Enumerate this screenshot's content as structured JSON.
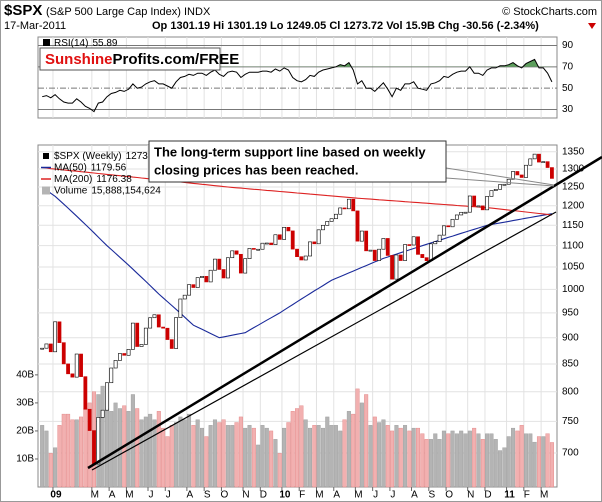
{
  "header": {
    "symbol": "$SPX",
    "name": "(S&P 500 Large Cap Index) INDX",
    "source": "© StockCharts.com",
    "date": "17-Mar-2011",
    "stats": "Op 1301.19 Hi 1301.19 Lo 1249.05 Cl 1273.72 Vol 15.9B Chg -30.56 (-2.34%)"
  },
  "chart_data": [
    {
      "type": "line",
      "logo": [
        "Sunshine",
        "Profits.com/FREE"
      ],
      "ylim": [
        22,
        98
      ],
      "yticks": [
        30,
        50,
        70,
        90
      ],
      "overbought_color": "#5c9e5c",
      "series": [
        {
          "name": "RSI(14)",
          "color": "#000000",
          "values": [
            42,
            43,
            41,
            44,
            40,
            37,
            36,
            36,
            40,
            37,
            33,
            31,
            28,
            36,
            37,
            42,
            45,
            46,
            48,
            47,
            49,
            54,
            50,
            51,
            54,
            56,
            57,
            54,
            54,
            52,
            50,
            56,
            60,
            61,
            63,
            62,
            64,
            64,
            62,
            65,
            67,
            63,
            61,
            65,
            66,
            65,
            60,
            63,
            65,
            65,
            65,
            66,
            66,
            65,
            68,
            66,
            69,
            67,
            60,
            57,
            56,
            58,
            62,
            61,
            65,
            67,
            68,
            69,
            70,
            72,
            71,
            74,
            67,
            54,
            57,
            50,
            50,
            47,
            51,
            55,
            49,
            42,
            50,
            48,
            54,
            54,
            56,
            50,
            49,
            48,
            54,
            55,
            57,
            61,
            60,
            63,
            65,
            66,
            66,
            70,
            64,
            64,
            62,
            67,
            69,
            69,
            71,
            71,
            72,
            74,
            71,
            69,
            73,
            75,
            77,
            69,
            69,
            64,
            55.89
          ]
        }
      ]
    },
    {
      "type": "candlestick",
      "log": true,
      "grid": true,
      "ylim": [
        650,
        1370
      ],
      "yticks": [
        700,
        750,
        800,
        850,
        900,
        950,
        1000,
        1050,
        1100,
        1150,
        1200,
        1250,
        1300,
        1350
      ],
      "y2lim": [
        0,
        122
      ],
      "y2ticks": [
        {
          "value": 10,
          "label": "10B"
        },
        {
          "value": 20,
          "label": "20B"
        },
        {
          "value": 30,
          "label": "30B"
        },
        {
          "value": 40,
          "label": "40B"
        }
      ],
      "up_color": "#ffffff",
      "down_color": "#cc0000",
      "annotation": [
        "The long-term support line based on weekly",
        "closing prices has been reached."
      ],
      "categories": [
        null,
        null,
        null,
        "09",
        null,
        null,
        null,
        null,
        null,
        null,
        null,
        null,
        "M",
        null,
        null,
        null,
        "A",
        null,
        null,
        null,
        "M",
        null,
        null,
        null,
        null,
        "J",
        null,
        null,
        null,
        "J",
        null,
        null,
        null,
        null,
        "A",
        null,
        null,
        null,
        "S",
        null,
        null,
        null,
        "O",
        null,
        null,
        null,
        null,
        "N",
        null,
        null,
        null,
        "D",
        null,
        null,
        null,
        null,
        "10",
        null,
        null,
        null,
        "F",
        null,
        null,
        null,
        "M",
        null,
        null,
        null,
        "A",
        null,
        null,
        null,
        null,
        "M",
        null,
        null,
        null,
        "J",
        null,
        null,
        null,
        "J",
        null,
        null,
        null,
        null,
        "A",
        null,
        null,
        null,
        "S",
        null,
        null,
        null,
        "O",
        null,
        null,
        null,
        null,
        "N",
        null,
        null,
        null,
        "D",
        null,
        null,
        null,
        null,
        "11",
        null,
        null,
        null,
        "F",
        null,
        null,
        null,
        "M",
        null,
        null
      ],
      "series": [
        {
          "name": "$SPX (Weekly)",
          "color": "#000000",
          "values": [
            879.7,
            887.9,
            872.8,
            931.8,
            890.4,
            850.1,
            831.9,
            825.9,
            868.6,
            826.8,
            770.1,
            735.1,
            683.4,
            756.6,
            768.5,
            815.9,
            842.5,
            856.6,
            869.6,
            866.2,
            877.5,
            929.2,
            882.9,
            887.0,
            919.1,
            940.1,
            946.2,
            921.2,
            918.9,
            896.4,
            879.1,
            940.4,
            979.3,
            987.5,
            1010.5,
            1004.1,
            1026.1,
            1028.9,
            1016.4,
            1042.7,
            1068.3,
            1044.4,
            1025.2,
            1071.5,
            1087.7,
            1079.6,
            1036.2,
            1069.3,
            1093.5,
            1091.4,
            1091.5,
            1106.0,
            1106.4,
            1102.5,
            1126.5,
            1115.1,
            1145.0,
            1136.0,
            1091.8,
            1073.9,
            1066.2,
            1075.5,
            1109.2,
            1104.5,
            1138.7,
            1150.0,
            1159.9,
            1166.6,
            1178.1,
            1194.4,
            1192.1,
            1217.3,
            1186.7,
            1110.9,
            1135.7,
            1087.7,
            1089.4,
            1064.9,
            1091.6,
            1117.5,
            1076.8,
            1022.6,
            1078.0,
            1064.9,
            1102.7,
            1101.6,
            1121.6,
            1079.3,
            1071.7,
            1064.6,
            1104.5,
            1109.6,
            1125.6,
            1148.7,
            1146.2,
            1165.2,
            1176.2,
            1183.1,
            1183.3,
            1225.9,
            1199.2,
            1199.7,
            1189.4,
            1224.7,
            1240.4,
            1243.9,
            1256.8,
            1257.6,
            1271.5,
            1293.2,
            1283.4,
            1276.3,
            1310.9,
            1329.2,
            1343.0,
            1319.9,
            1321.2,
            1304.3,
            1273.72
          ]
        },
        {
          "name": "MA(50)",
          "color": "#1a2a9a",
          "values": [
            1250,
            1242,
            1233,
            1225,
            1214.6,
            1204.2,
            1193.8,
            1183.3,
            1172.9,
            1162.5,
            1152.1,
            1141.7,
            1131.3,
            1120.8,
            1110.4,
            1100,
            1090.8,
            1081.7,
            1072.5,
            1063.3,
            1054.2,
            1045,
            1035.8,
            1026.7,
            1017.5,
            1008.3,
            999.2,
            990,
            981.9,
            973.8,
            965.6,
            957.5,
            949.4,
            941.3,
            933.1,
            925,
            920.8,
            916.7,
            912.5,
            908.3,
            904.2,
            900,
            901.7,
            903.3,
            905,
            906.7,
            908.3,
            910,
            915,
            920,
            925,
            930,
            935,
            940,
            945,
            950,
            955.8,
            961.7,
            967.5,
            973.3,
            979.2,
            985,
            990.8,
            996.7,
            1002.5,
            1008.3,
            1014.2,
            1020,
            1024.2,
            1028.3,
            1032.5,
            1036.7,
            1040.8,
            1045,
            1049.2,
            1053.3,
            1057.5,
            1061.7,
            1065.8,
            1070,
            1073.3,
            1076.7,
            1080,
            1083.3,
            1086.7,
            1090,
            1093.3,
            1096.7,
            1100,
            1103.3,
            1106.7,
            1110,
            1113.3,
            1116.7,
            1120,
            1123.3,
            1126.7,
            1130,
            1133.3,
            1136.7,
            1140,
            1143.3,
            1146.7,
            1150,
            1152,
            1153.9,
            1155.9,
            1157.9,
            1159.9,
            1161.8,
            1163.8,
            1165.8,
            1167.8,
            1169.7,
            1171.7,
            1173.7,
            1175.6,
            1177.6,
            1179.56
          ]
        },
        {
          "name": "MA(200)",
          "color": "#dd2222",
          "values": [
            1304,
            1303,
            1301,
            1300,
            1298.8,
            1297.5,
            1296.3,
            1295,
            1293.8,
            1292.5,
            1291.3,
            1290,
            1288.8,
            1287.5,
            1286.3,
            1285,
            1283.8,
            1282.5,
            1281.3,
            1280,
            1278.8,
            1277.5,
            1276.3,
            1275,
            1273.8,
            1272.5,
            1271.3,
            1270,
            1268.8,
            1267.5,
            1266.3,
            1265,
            1263.8,
            1262.5,
            1261.3,
            1260,
            1258.8,
            1257.5,
            1256.3,
            1255,
            1253.8,
            1252.5,
            1251.3,
            1250,
            1249,
            1248,
            1247,
            1246,
            1245,
            1244,
            1243,
            1242,
            1241,
            1240,
            1239,
            1238,
            1237,
            1236,
            1235,
            1234,
            1233,
            1232,
            1231,
            1230,
            1229,
            1228,
            1227,
            1226,
            1225,
            1224,
            1223,
            1222,
            1221,
            1220,
            1219.2,
            1218.3,
            1217.5,
            1216.7,
            1215.8,
            1215,
            1214.2,
            1213.3,
            1212.5,
            1211.7,
            1210.8,
            1210,
            1209.2,
            1208.3,
            1207.5,
            1206.7,
            1205.8,
            1205,
            1204.2,
            1203.3,
            1202.5,
            1201.7,
            1200.8,
            1200,
            1199.2,
            1198.3,
            1197.5,
            1196.7,
            1195.8,
            1195,
            1193.8,
            1192.5,
            1191.3,
            1190,
            1188.8,
            1187.5,
            1186.3,
            1185,
            1183.8,
            1182.5,
            1181.3,
            1180,
            1178.8,
            1177.6,
            1176.38
          ]
        },
        {
          "name": "Volume",
          "color": "#b4b4b4",
          "down_color": "#f2b0b0",
          "axis": "y2",
          "legend_value": "15,888,154,624",
          "values": [
            22,
            20,
            12,
            14,
            22,
            26,
            26,
            24,
            24,
            25,
            28,
            30,
            34,
            33,
            36,
            28,
            27,
            30,
            28,
            29,
            27,
            33,
            28,
            24,
            25,
            26,
            24,
            27,
            21,
            18,
            22,
            23,
            25,
            24,
            26,
            22,
            24,
            21,
            18,
            22,
            24,
            23,
            24,
            22,
            22,
            23,
            25,
            21,
            22,
            21,
            15,
            22,
            21,
            20,
            17,
            12,
            21,
            23,
            27,
            28,
            29,
            24,
            21,
            22,
            22,
            21,
            25,
            22,
            22,
            20,
            24,
            27,
            26,
            35,
            30,
            33,
            22,
            25,
            23,
            24,
            22,
            20,
            22,
            21,
            22,
            20,
            21,
            21,
            19,
            17,
            17,
            19,
            17,
            20,
            19,
            20,
            19,
            20,
            19,
            20,
            21,
            19,
            17,
            19,
            19,
            17,
            13,
            14,
            18,
            21,
            20,
            22,
            19,
            19,
            16,
            18,
            18,
            19,
            15.888154624
          ]
        }
      ]
    }
  ]
}
